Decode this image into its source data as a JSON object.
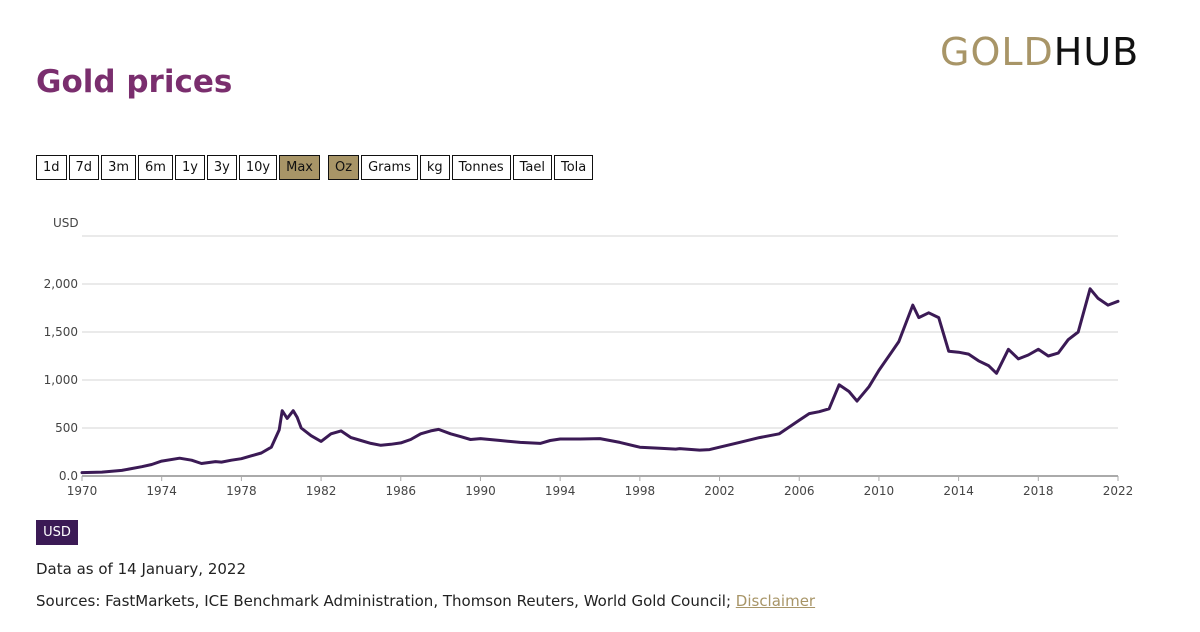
{
  "logo": {
    "part1": "GOLD",
    "part2": "HUB"
  },
  "page_title": "Gold prices",
  "range_buttons": [
    "1d",
    "7d",
    "3m",
    "6m",
    "1y",
    "3y",
    "10y",
    "Max"
  ],
  "range_active": "Max",
  "unit_buttons": [
    "Oz",
    "Grams",
    "kg",
    "Tonnes",
    "Tael",
    "Tola"
  ],
  "unit_active": "Oz",
  "currency_badge": "USD",
  "as_of": "Data as of 14 January, 2022",
  "sources": {
    "prefix": "Sources: FastMarkets, ICE Benchmark Administration, Thomson Reuters, World Gold Council; ",
    "disclaimer": "Disclaimer"
  },
  "colors": {
    "title": "#7a2e6e",
    "accent": "#a89567",
    "line": "#3b1a55"
  },
  "chart_data": {
    "type": "line",
    "title": "Gold prices",
    "ylabel": "USD",
    "xlabel": "",
    "xlim": [
      1970,
      2022
    ],
    "ylim": [
      0,
      2500
    ],
    "yticks": [
      0,
      500,
      1000,
      1500,
      2000
    ],
    "ytick_labels": [
      "0.0",
      "500",
      "1,000",
      "1,500",
      "2,000"
    ],
    "xticks": [
      1970,
      1974,
      1978,
      1982,
      1986,
      1990,
      1994,
      1998,
      2002,
      2006,
      2010,
      2014,
      2018,
      2022
    ],
    "grid": true,
    "series": [
      {
        "name": "USD",
        "x": [
          1970,
          1971,
          1972,
          1973,
          1973.5,
          1974,
          1974.9,
          1975.5,
          1976,
          1976.7,
          1977,
          1977.5,
          1978,
          1978.5,
          1979,
          1979.5,
          1979.9,
          1980.05,
          1980.3,
          1980.6,
          1980.8,
          1981,
          1981.5,
          1982,
          1982.5,
          1983,
          1983.5,
          1984,
          1984.5,
          1985,
          1985.5,
          1986,
          1986.5,
          1987,
          1987.5,
          1987.9,
          1988.5,
          1989,
          1989.5,
          1990,
          1991,
          1992,
          1993,
          1993.5,
          1994,
          1995,
          1996,
          1997,
          1998,
          1999,
          1999.8,
          2000,
          2001,
          2001.5,
          2002,
          2003,
          2004,
          2005,
          2006,
          2006.5,
          2007,
          2007.5,
          2008,
          2008.5,
          2008.9,
          2009.5,
          2010,
          2010.5,
          2011,
          2011.7,
          2012,
          2012.5,
          2013,
          2013.5,
          2014,
          2014.5,
          2015,
          2015.5,
          2015.9,
          2016.5,
          2017,
          2017.5,
          2018,
          2018.5,
          2019,
          2019.5,
          2020,
          2020.6,
          2021,
          2021.5,
          2022
        ],
        "values": [
          35,
          41,
          58,
          97,
          120,
          155,
          185,
          165,
          130,
          150,
          145,
          165,
          180,
          210,
          240,
          300,
          480,
          680,
          600,
          680,
          610,
          500,
          420,
          360,
          440,
          470,
          400,
          370,
          340,
          320,
          330,
          345,
          380,
          440,
          470,
          485,
          440,
          410,
          380,
          390,
          370,
          350,
          340,
          370,
          385,
          385,
          390,
          350,
          300,
          290,
          280,
          285,
          270,
          275,
          300,
          350,
          400,
          440,
          580,
          650,
          670,
          700,
          950,
          880,
          780,
          930,
          1100,
          1250,
          1400,
          1780,
          1650,
          1700,
          1650,
          1300,
          1290,
          1270,
          1200,
          1150,
          1070,
          1320,
          1220,
          1260,
          1320,
          1250,
          1280,
          1420,
          1500,
          1950,
          1850,
          1780,
          1820
        ]
      }
    ]
  }
}
